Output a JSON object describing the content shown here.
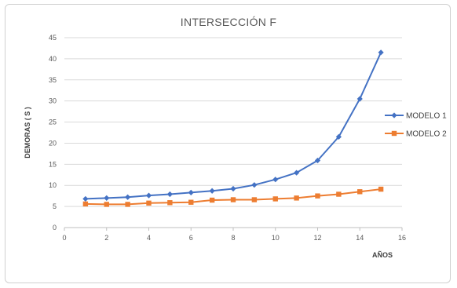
{
  "chart_data": {
    "type": "line",
    "title": "INTERSECCIÓN F",
    "xlabel": "AÑOS",
    "ylabel": "DEMORAS ( S )",
    "xlim": [
      0,
      16
    ],
    "ylim": [
      0,
      45
    ],
    "x_ticks": [
      "0",
      "2",
      "4",
      "6",
      "8",
      "10",
      "12",
      "14",
      "16"
    ],
    "y_ticks": [
      "0",
      "5",
      "10",
      "15",
      "20",
      "25",
      "30",
      "35",
      "40",
      "45"
    ],
    "grid": true,
    "legend_position": "right",
    "x": [
      1,
      2,
      3,
      4,
      5,
      6,
      7,
      8,
      9,
      10,
      11,
      12,
      13,
      14,
      15
    ],
    "series": [
      {
        "name": "MODELO 1",
        "color": "#4472c4",
        "marker": "diamond",
        "values": [
          6.8,
          7.0,
          7.2,
          7.6,
          7.9,
          8.3,
          8.7,
          9.2,
          10.1,
          11.4,
          13.0,
          15.9,
          21.5,
          30.5,
          41.5
        ]
      },
      {
        "name": "MODELO 2",
        "color": "#ed7d31",
        "marker": "square",
        "values": [
          5.6,
          5.5,
          5.5,
          5.8,
          5.9,
          6.0,
          6.5,
          6.6,
          6.6,
          6.8,
          7.0,
          7.5,
          7.9,
          8.5,
          9.1
        ]
      }
    ]
  }
}
